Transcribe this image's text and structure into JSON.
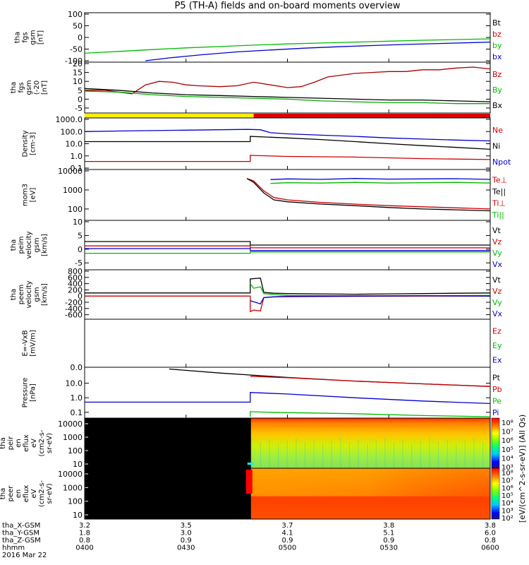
{
  "title": "P5 (TH-A) fields and on-board moments overview",
  "chart_data": [
    {
      "type": "line",
      "panel": "fgs_gsm",
      "ylabel": [
        "tha",
        "fgs",
        "gsm",
        "[nT]"
      ],
      "yticks": [
        "100",
        "50",
        "0",
        "-50",
        "-100"
      ],
      "ylim": [
        -100,
        100
      ],
      "legend": [
        {
          "label": "Bt",
          "color": "#000000"
        },
        {
          "label": "bz",
          "color": "#cc0000"
        },
        {
          "label": "by",
          "color": "#00bb00"
        },
        {
          "label": "bx",
          "color": "#0000cc"
        }
      ],
      "series": [
        {
          "name": "by",
          "color": "#00bb00",
          "x": [
            0,
            10,
            20,
            30,
            40,
            50,
            60,
            70,
            80,
            90,
            100,
            110,
            120
          ],
          "y": [
            -68,
            -60,
            -52,
            -45,
            -39,
            -33,
            -28,
            -24,
            -20,
            -16,
            -12,
            -9,
            -6
          ]
        },
        {
          "name": "bx",
          "color": "#0000cc",
          "x": [
            18,
            25,
            35,
            45,
            55,
            65,
            75,
            85,
            95,
            105,
            115,
            120
          ],
          "y": [
            -100,
            -88,
            -74,
            -62,
            -54,
            -46,
            -40,
            -35,
            -30,
            -26,
            -22,
            -20
          ]
        }
      ]
    },
    {
      "type": "line",
      "panel": "fgs_gsm_zoom",
      "ylabel": [
        "tha",
        "fgs",
        "gsm",
        "(-20",
        "[nT]"
      ],
      "yticks": [
        "20",
        "15",
        "10",
        "5",
        "0",
        "-5"
      ],
      "ylim": [
        -7,
        20
      ],
      "legend": [
        {
          "label": "Bz",
          "color": "#cc0000"
        },
        {
          "label": "By",
          "color": "#00bb00"
        },
        {
          "label": "Bx",
          "color": "#000000"
        }
      ],
      "series": [
        {
          "name": "Bz",
          "color": "#aa0000",
          "x": [
            0,
            6,
            10,
            14,
            18,
            22,
            26,
            30,
            34,
            40,
            45,
            50,
            55,
            60,
            64,
            68,
            72,
            76,
            80,
            85,
            90,
            95,
            100,
            105,
            110,
            115,
            120
          ],
          "y": [
            5,
            5,
            4,
            3,
            8,
            10,
            9.5,
            8,
            7.5,
            7,
            7.5,
            9.5,
            8,
            6.5,
            7,
            9.5,
            12.5,
            13.5,
            14.5,
            15,
            15.5,
            15.5,
            16.5,
            16.5,
            17.5,
            18,
            17
          ]
        },
        {
          "name": "Bx",
          "color": "#000000",
          "x": [
            0,
            10,
            20,
            30,
            40,
            50,
            60,
            70,
            80,
            90,
            100,
            110,
            120
          ],
          "y": [
            6,
            5,
            3.5,
            2.5,
            2,
            1.5,
            1,
            0.5,
            0,
            -0.5,
            -0.5,
            -1,
            -1.5
          ]
        },
        {
          "name": "By",
          "color": "#00aa00",
          "x": [
            0,
            10,
            20,
            30,
            40,
            50,
            60,
            70,
            80,
            90,
            100,
            110,
            120
          ],
          "y": [
            4.5,
            4,
            2.5,
            1.5,
            1,
            0.5,
            0,
            -1,
            -1.5,
            -2,
            -2,
            -2.5,
            -2.5
          ]
        }
      ]
    },
    {
      "type": "bar",
      "panel": "mode_bar",
      "segments": [
        {
          "x0": 0,
          "x1": 50,
          "color": "#ffee00"
        },
        {
          "x0": 50,
          "x1": 120,
          "color": "#dd0000"
        }
      ]
    },
    {
      "type": "line",
      "panel": "density",
      "ylabel": [
        "Density",
        "[cm-3]"
      ],
      "yticks": [
        "1000.0",
        "100.0",
        "10.0",
        "1.0",
        "0.1"
      ],
      "ylim": [
        0.1,
        1000
      ],
      "ylog": true,
      "legend": [
        {
          "label": "Ne",
          "color": "#cc0000"
        },
        {
          "label": "Ni",
          "color": "#000000"
        },
        {
          "label": "Npot",
          "color": "#0000cc"
        }
      ],
      "series": [
        {
          "name": "Npot",
          "color": "#0000cc",
          "x": [
            0,
            10,
            20,
            30,
            40,
            48,
            52,
            55,
            60,
            70,
            80,
            90,
            100,
            110,
            120
          ],
          "y": [
            100,
            110,
            120,
            130,
            140,
            150,
            140,
            80,
            65,
            50,
            40,
            30,
            24,
            20,
            17
          ]
        },
        {
          "name": "Ni",
          "color": "#000000",
          "x": [
            0,
            49,
            49,
            60,
            70,
            80,
            90,
            100,
            110,
            120
          ],
          "y": [
            15,
            15,
            40,
            30,
            22,
            15,
            10,
            7,
            5,
            3.5
          ]
        },
        {
          "name": "Ne",
          "color": "#cc0000",
          "x": [
            0,
            49,
            49,
            60,
            80,
            100,
            120
          ],
          "y": [
            0.35,
            0.35,
            1.1,
            0.9,
            0.8,
            0.6,
            0.5
          ]
        }
      ]
    },
    {
      "type": "line",
      "panel": "temperature",
      "ylabel": [
        "mom3",
        "[eV]"
      ],
      "yticks": [
        "10000",
        "1000",
        "100"
      ],
      "ylim": [
        30,
        10000
      ],
      "ylog": true,
      "legend": [
        {
          "label": "Te⊥",
          "color": "#cc0000"
        },
        {
          "label": "Te||",
          "color": "#000000"
        },
        {
          "label": "Ti⊥",
          "color": "#cc0000"
        },
        {
          "label": "Ti||",
          "color": "#00bb00"
        }
      ],
      "series": [
        {
          "name": "Ti⊥",
          "color": "#0000cc",
          "x": [
            55,
            60,
            70,
            80,
            90,
            100,
            110,
            120
          ],
          "y": [
            3500,
            3800,
            3600,
            4000,
            3700,
            3800,
            3900,
            3600
          ]
        },
        {
          "name": "Ti||",
          "color": "#00bb00",
          "x": [
            55,
            60,
            70,
            80,
            90,
            100,
            110,
            120
          ],
          "y": [
            2200,
            2400,
            2300,
            2500,
            2300,
            2400,
            2500,
            2300
          ]
        },
        {
          "name": "Te⊥",
          "color": "#cc0000",
          "x": [
            48,
            50,
            53,
            56,
            60,
            70,
            80,
            90,
            100,
            110,
            120
          ],
          "y": [
            4000,
            3000,
            900,
            400,
            300,
            220,
            180,
            150,
            130,
            115,
            100
          ]
        },
        {
          "name": "Te||",
          "color": "#000000",
          "x": [
            48,
            50,
            53,
            56,
            60,
            70,
            80,
            90,
            100,
            110,
            120
          ],
          "y": [
            4000,
            2500,
            700,
            300,
            240,
            180,
            150,
            120,
            100,
            90,
            80
          ]
        }
      ]
    },
    {
      "type": "line",
      "panel": "peim_velocity",
      "ylabel": [
        "tha",
        "peim",
        "velocity",
        "gsm",
        "[km/s]"
      ],
      "yticks": [
        "10",
        "5",
        "0",
        "-5"
      ],
      "ylim": [
        -7,
        10
      ],
      "legend": [
        {
          "label": "Vt",
          "color": "#000000"
        },
        {
          "label": "Vz",
          "color": "#cc0000"
        },
        {
          "label": "Vy",
          "color": "#00bb00"
        },
        {
          "label": "Vx",
          "color": "#0000cc"
        }
      ],
      "series": [
        {
          "name": "Vt",
          "color": "#000000",
          "x": [
            0,
            49,
            49,
            120
          ],
          "y": [
            2.8,
            2.8,
            1.5,
            1.5
          ]
        },
        {
          "name": "Vz",
          "color": "#cc0000",
          "x": [
            0,
            49,
            49,
            120
          ],
          "y": [
            1.2,
            1.2,
            0.5,
            0.5
          ]
        },
        {
          "name": "Vx",
          "color": "#0000cc",
          "x": [
            0,
            49,
            49,
            120
          ],
          "y": [
            0.2,
            0.2,
            -0.5,
            -0.5
          ]
        },
        {
          "name": "Vy",
          "color": "#00bb00",
          "x": [
            0,
            49,
            49,
            120
          ],
          "y": [
            -1.5,
            -1.5,
            -1,
            -1
          ]
        }
      ]
    },
    {
      "type": "line",
      "panel": "peem_velocity",
      "ylabel": [
        "tha",
        "peem",
        "velocity",
        "gsm",
        "[km/s]"
      ],
      "yticks": [
        "800",
        "600",
        "400",
        "200",
        "0",
        "-200",
        "-400",
        "-600"
      ],
      "ylim": [
        -700,
        800
      ],
      "legend": [
        {
          "label": "Vt",
          "color": "#000000"
        },
        {
          "label": "Vz",
          "color": "#cc0000"
        },
        {
          "label": "Vy",
          "color": "#00bb00"
        },
        {
          "label": "Vx",
          "color": "#0000cc"
        }
      ],
      "series": [
        {
          "name": "Vt",
          "color": "#000000",
          "x": [
            0,
            49,
            49,
            52,
            53,
            56,
            60,
            70,
            80,
            90,
            100,
            110,
            120
          ],
          "y": [
            100,
            100,
            550,
            580,
            120,
            90,
            80,
            70,
            60,
            70,
            80,
            90,
            100
          ]
        },
        {
          "name": "Vy",
          "color": "#00bb00",
          "x": [
            49,
            50,
            52,
            53,
            56,
            60,
            80,
            100,
            120
          ],
          "y": [
            400,
            250,
            300,
            80,
            50,
            20,
            10,
            10,
            20
          ]
        },
        {
          "name": "Vz",
          "color": "#cc0000",
          "x": [
            0,
            49,
            49,
            50,
            52,
            53,
            56,
            60,
            80,
            100,
            120
          ],
          "y": [
            0,
            0,
            -500,
            -450,
            -480,
            -50,
            -30,
            -20,
            -10,
            0,
            0
          ]
        },
        {
          "name": "Vx",
          "color": "#0000cc",
          "x": [
            49,
            52,
            53,
            56,
            60,
            80,
            100,
            120
          ],
          "y": [
            -150,
            -250,
            -50,
            -20,
            -10,
            0,
            10,
            0
          ]
        }
      ]
    },
    {
      "type": "line",
      "panel": "efield",
      "ylabel": [
        "E=-VxB",
        "[mV/m]"
      ],
      "yticks": [],
      "legend": [
        {
          "label": "Ez",
          "color": "#cc0000"
        },
        {
          "label": "Ey",
          "color": "#00bb00"
        },
        {
          "label": "Ex",
          "color": "#0000cc"
        }
      ],
      "series": []
    },
    {
      "type": "line",
      "panel": "pressure",
      "ylabel": [
        "Pressure",
        "[nPa]"
      ],
      "yticks": [
        "10.0",
        "1.0",
        "0.1"
      ],
      "top_tick": "0.0",
      "ylim": [
        0.05,
        100
      ],
      "ylog": true,
      "legend": [
        {
          "label": "Pt",
          "color": "#000000"
        },
        {
          "label": "Pb",
          "color": "#cc0000"
        },
        {
          "label": "Pe",
          "color": "#00bb00"
        },
        {
          "label": "Pi",
          "color": "#0000cc"
        }
      ],
      "series": [
        {
          "name": "Pt",
          "color": "#000000",
          "x": [
            25,
            40,
            60,
            80,
            100,
            120
          ],
          "y": [
            95,
            50,
            25,
            14,
            9,
            6
          ]
        },
        {
          "name": "Pb",
          "color": "#cc0000",
          "x": [
            49,
            60,
            80,
            100,
            120
          ],
          "y": [
            30,
            24,
            14,
            9,
            6
          ]
        },
        {
          "name": "Pi",
          "color": "#0000cc",
          "x": [
            0,
            49,
            49,
            60,
            80,
            100,
            120
          ],
          "y": [
            0.5,
            0.5,
            2.3,
            1.8,
            1,
            0.6,
            0.4
          ]
        },
        {
          "name": "Pe",
          "color": "#00bb00",
          "x": [
            49,
            49,
            55,
            80,
            100,
            120
          ],
          "y": [
            0.05,
            0.11,
            0.1,
            0.08,
            0.06,
            0.05
          ]
        }
      ]
    },
    {
      "type": "heatmap",
      "panel": "peir_spectrogram",
      "ylabel": [
        "tha",
        "peir",
        "en",
        "eflux",
        "eV",
        "(cm2-s-",
        "sr-eV)"
      ],
      "yticks": [
        "10000",
        "1000",
        "100",
        "10"
      ],
      "colorbar_ticks": [
        "10⁸",
        "10⁷",
        "10⁶",
        "10⁵",
        "10⁴",
        "10³"
      ]
    },
    {
      "type": "heatmap",
      "panel": "peer_spectrogram",
      "ylabel": [
        "tha",
        "peer",
        "en",
        "eflux",
        "eV",
        "(cm2-s-",
        "sr-eV)"
      ],
      "yticks": [
        "10000",
        "1000",
        "100",
        "10"
      ],
      "colorbar_ticks": [
        "10⁸",
        "10⁷",
        "10⁶",
        "10⁵",
        "10⁴",
        "10³",
        "10²"
      ],
      "colorbar_label": "[eV/(cm^2-s-sr-eV)] (All Qs)"
    }
  ],
  "xaxis": {
    "rows": [
      {
        "label": "tha_X-GSM",
        "values": [
          "3.2",
          "3.5",
          "3.7",
          "3.8",
          "3.8"
        ]
      },
      {
        "label": "tha_Y-GSM",
        "values": [
          "1.8",
          "3.0",
          "4.1",
          "5.1",
          "6.0"
        ]
      },
      {
        "label": "tha_Z-GSM",
        "values": [
          "0.8",
          "0.9",
          "0.9",
          "0.9",
          "0.8"
        ]
      },
      {
        "label": "hhmm",
        "values": [
          "0400",
          "0430",
          "0500",
          "0530",
          "0600"
        ]
      }
    ],
    "date": "2016 Mar 22",
    "xlim": [
      0,
      120
    ],
    "ticks": [
      0,
      30,
      60,
      90,
      120
    ]
  }
}
